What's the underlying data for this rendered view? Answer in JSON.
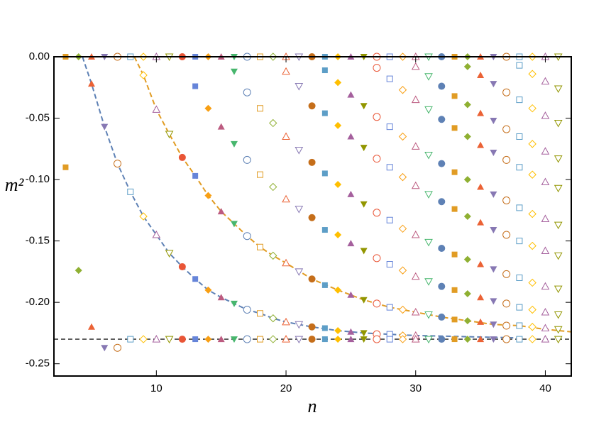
{
  "chart_data": {
    "type": "scatter",
    "xlabel": "n",
    "ylabel": "m²",
    "xlim": [
      2.1,
      42
    ],
    "ylim": [
      -0.26,
      0
    ],
    "xticks": [
      10,
      20,
      30,
      40
    ],
    "yticks": [
      {
        "value": 0,
        "label": "0.00"
      },
      -0.05,
      {
        "value": -0.1,
        "label": "-0.10"
      },
      -0.15,
      {
        "value": -0.2,
        "label": "-0.20"
      },
      -0.25
    ],
    "hline": -0.23,
    "fits": [
      {
        "color": "#5E81B5",
        "x": [
          4.3,
          5,
          6,
          7,
          8,
          9,
          10,
          11,
          12,
          13,
          14,
          15,
          16,
          17,
          18,
          19,
          20,
          22,
          24,
          26,
          28,
          30,
          34,
          38
        ],
        "values": [
          0,
          -0.022,
          -0.057,
          -0.087,
          -0.11,
          -0.13,
          -0.145,
          -0.16,
          -0.171,
          -0.181,
          -0.19,
          -0.196,
          -0.201,
          -0.206,
          -0.209,
          -0.213,
          -0.216,
          -0.22,
          -0.223,
          -0.225,
          -0.226,
          -0.227,
          -0.228,
          -0.229
        ]
      },
      {
        "color": "#E19C24",
        "x": [
          8.3,
          9,
          10,
          11,
          12,
          13,
          14,
          15,
          16,
          17,
          18,
          19,
          20,
          22,
          24,
          26,
          28,
          30,
          32,
          34,
          36,
          38,
          40,
          42
        ],
        "values": [
          0,
          -0.015,
          -0.043,
          -0.063,
          -0.082,
          -0.097,
          -0.113,
          -0.126,
          -0.136,
          -0.146,
          -0.155,
          -0.162,
          -0.168,
          -0.181,
          -0.19,
          -0.198,
          -0.204,
          -0.208,
          -0.212,
          -0.215,
          -0.218,
          -0.219,
          -0.222,
          -0.224
        ]
      }
    ],
    "series": [
      {
        "x": 3,
        "color": "#E19C24",
        "marker": "square",
        "filled": true,
        "values": [
          0,
          -0.09
        ]
      },
      {
        "x": 4,
        "color": "#8FB032",
        "marker": "diamond",
        "filled": true,
        "values": [
          0,
          -0.174
        ]
      },
      {
        "x": 5,
        "color": "#EB6235",
        "marker": "triangle-up",
        "filled": true,
        "values": [
          0,
          -0.022,
          -0.22
        ]
      },
      {
        "x": 6,
        "color": "#8778B3",
        "marker": "triangle-down",
        "filled": true,
        "values": [
          0,
          -0.057,
          -0.237
        ]
      },
      {
        "x": 7,
        "color": "#C56E1A",
        "marker": "circle",
        "filled": false,
        "values": [
          0,
          -0.087,
          -0.237
        ]
      },
      {
        "x": 8,
        "color": "#5D9EC7",
        "marker": "square",
        "filled": false,
        "values": [
          0,
          -0.11,
          -0.23
        ]
      },
      {
        "x": 9,
        "color": "#FFBF00",
        "marker": "diamond",
        "filled": false,
        "values": [
          0,
          -0.015,
          -0.13,
          -0.23
        ]
      },
      {
        "x": 10,
        "color": "#A5609D",
        "marker": "triangle-up",
        "filled": false,
        "values": [
          0,
          -0.043,
          -0.145,
          -0.23
        ]
      },
      {
        "x": 11,
        "color": "#929600",
        "marker": "triangle-down",
        "filled": false,
        "values": [
          0,
          -0.063,
          -0.16,
          -0.23
        ]
      },
      {
        "x": 12,
        "color": "#E95536",
        "marker": "circle",
        "filled": true,
        "values": [
          0,
          -0.082,
          -0.171,
          -0.23
        ]
      },
      {
        "x": 13,
        "color": "#6685D9",
        "marker": "square",
        "filled": true,
        "values": [
          0,
          -0.024,
          -0.097,
          -0.181,
          -0.23
        ]
      },
      {
        "x": 14,
        "color": "#F89F13",
        "marker": "diamond",
        "filled": true,
        "values": [
          0,
          -0.042,
          -0.113,
          -0.19,
          -0.23
        ]
      },
      {
        "x": 15,
        "color": "#BC5B80",
        "marker": "triangle-up",
        "filled": true,
        "values": [
          0,
          -0.057,
          -0.126,
          -0.196,
          -0.23
        ]
      },
      {
        "x": 16,
        "color": "#47B66D",
        "marker": "triangle-down",
        "filled": true,
        "values": [
          0,
          -0.012,
          -0.071,
          -0.136,
          -0.201,
          -0.23
        ]
      },
      {
        "x": 17,
        "color": "#5E81B5",
        "marker": "circle",
        "filled": false,
        "values": [
          0,
          -0.029,
          -0.084,
          -0.146,
          -0.206,
          -0.23
        ]
      },
      {
        "x": 18,
        "color": "#E19C24",
        "marker": "square",
        "filled": false,
        "values": [
          0,
          -0.042,
          -0.096,
          -0.155,
          -0.209,
          -0.23
        ]
      },
      {
        "x": 19,
        "color": "#8FB032",
        "marker": "diamond",
        "filled": false,
        "values": [
          0,
          -0.054,
          -0.106,
          -0.162,
          -0.213,
          -0.23
        ]
      },
      {
        "x": 20,
        "color": "#EB6235",
        "marker": "triangle-up",
        "filled": false,
        "values": [
          0,
          -0.012,
          -0.065,
          -0.116,
          -0.168,
          -0.216,
          -0.23
        ]
      },
      {
        "x": 21,
        "color": "#8778B3",
        "marker": "triangle-down",
        "filled": false,
        "values": [
          0,
          -0.024,
          -0.076,
          -0.124,
          -0.175,
          -0.218,
          -0.23
        ]
      },
      {
        "x": 22,
        "color": "#C56E1A",
        "marker": "circle",
        "filled": true,
        "values": [
          0,
          -0.04,
          -0.086,
          -0.131,
          -0.181,
          -0.22,
          -0.23
        ]
      },
      {
        "x": 23,
        "color": "#5D9EC7",
        "marker": "square",
        "filled": true,
        "values": [
          0,
          -0.011,
          -0.046,
          -0.095,
          -0.141,
          -0.186,
          -0.221,
          -0.23
        ]
      },
      {
        "x": 24,
        "color": "#FFBF00",
        "marker": "diamond",
        "filled": true,
        "values": [
          0,
          -0.021,
          -0.056,
          -0.104,
          -0.145,
          -0.19,
          -0.223,
          -0.23
        ]
      },
      {
        "x": 25,
        "color": "#A5609D",
        "marker": "triangle-up",
        "filled": true,
        "values": [
          0,
          -0.031,
          -0.065,
          -0.112,
          -0.152,
          -0.194,
          -0.224,
          -0.23
        ]
      },
      {
        "x": 26,
        "color": "#929600",
        "marker": "triangle-down",
        "filled": true,
        "values": [
          0,
          -0.04,
          -0.074,
          -0.12,
          -0.158,
          -0.198,
          -0.225,
          -0.23
        ]
      },
      {
        "x": 27,
        "color": "#E95536",
        "marker": "circle",
        "filled": false,
        "values": [
          0,
          -0.009,
          -0.049,
          -0.083,
          -0.127,
          -0.164,
          -0.201,
          -0.226,
          -0.23
        ]
      },
      {
        "x": 28,
        "color": "#6685D9",
        "marker": "square",
        "filled": false,
        "values": [
          0,
          -0.018,
          -0.057,
          -0.09,
          -0.133,
          -0.169,
          -0.204,
          -0.226,
          -0.23
        ]
      },
      {
        "x": 29,
        "color": "#F89F13",
        "marker": "diamond",
        "filled": false,
        "values": [
          0,
          -0.027,
          -0.065,
          -0.098,
          -0.14,
          -0.174,
          -0.206,
          -0.227,
          -0.23
        ]
      },
      {
        "x": 30,
        "color": "#BC5B80",
        "marker": "triangle-up",
        "filled": false,
        "values": [
          0,
          -0.008,
          -0.035,
          -0.073,
          -0.105,
          -0.145,
          -0.179,
          -0.208,
          -0.227,
          -0.23
        ]
      },
      {
        "x": 31,
        "color": "#47B66D",
        "marker": "triangle-down",
        "filled": false,
        "values": [
          0,
          -0.016,
          -0.043,
          -0.08,
          -0.112,
          -0.151,
          -0.183,
          -0.21,
          -0.23
        ]
      },
      {
        "x": 32,
        "color": "#5E81B5",
        "marker": "circle",
        "filled": true,
        "values": [
          0,
          -0.024,
          -0.051,
          -0.087,
          -0.118,
          -0.156,
          -0.187,
          -0.212,
          -0.23
        ]
      },
      {
        "x": 33,
        "color": "#E19C24",
        "marker": "square",
        "filled": true,
        "values": [
          0,
          -0.032,
          -0.058,
          -0.094,
          -0.124,
          -0.161,
          -0.19,
          -0.214,
          -0.23
        ]
      },
      {
        "x": 34,
        "color": "#8FB032",
        "marker": "diamond",
        "filled": true,
        "values": [
          0,
          -0.008,
          -0.039,
          -0.065,
          -0.1,
          -0.13,
          -0.165,
          -0.193,
          -0.215,
          -0.23
        ]
      },
      {
        "x": 35,
        "color": "#EB6235",
        "marker": "triangle-up",
        "filled": true,
        "values": [
          0,
          -0.015,
          -0.046,
          -0.072,
          -0.106,
          -0.135,
          -0.169,
          -0.196,
          -0.216,
          -0.23
        ]
      },
      {
        "x": 36,
        "color": "#8778B3",
        "marker": "triangle-down",
        "filled": true,
        "values": [
          0,
          -0.022,
          -0.052,
          -0.078,
          -0.112,
          -0.141,
          -0.173,
          -0.199,
          -0.218,
          -0.23
        ]
      },
      {
        "x": 37,
        "color": "#C56E1A",
        "marker": "circle",
        "filled": false,
        "values": [
          0,
          -0.029,
          -0.059,
          -0.084,
          -0.117,
          -0.145,
          -0.177,
          -0.201,
          -0.219,
          -0.23
        ]
      },
      {
        "x": 38,
        "color": "#5D9EC7",
        "marker": "square",
        "filled": false,
        "values": [
          0,
          -0.007,
          -0.035,
          -0.065,
          -0.09,
          -0.123,
          -0.15,
          -0.18,
          -0.204,
          -0.219,
          -0.23
        ]
      },
      {
        "x": 39,
        "color": "#FFBF00",
        "marker": "diamond",
        "filled": false,
        "values": [
          0,
          -0.014,
          -0.042,
          -0.071,
          -0.096,
          -0.128,
          -0.154,
          -0.184,
          -0.206,
          -0.22,
          -0.23
        ]
      },
      {
        "x": 40,
        "color": "#A5609D",
        "marker": "triangle-up",
        "filled": false,
        "values": [
          0,
          -0.02,
          -0.048,
          -0.077,
          -0.102,
          -0.132,
          -0.158,
          -0.187,
          -0.208,
          -0.221,
          -0.23
        ]
      },
      {
        "x": 41,
        "color": "#929600",
        "marker": "triangle-down",
        "filled": false,
        "values": [
          0,
          -0.026,
          -0.054,
          -0.083,
          -0.107,
          -0.137,
          -0.162,
          -0.189,
          -0.21,
          -0.222,
          -0.23
        ]
      }
    ]
  }
}
